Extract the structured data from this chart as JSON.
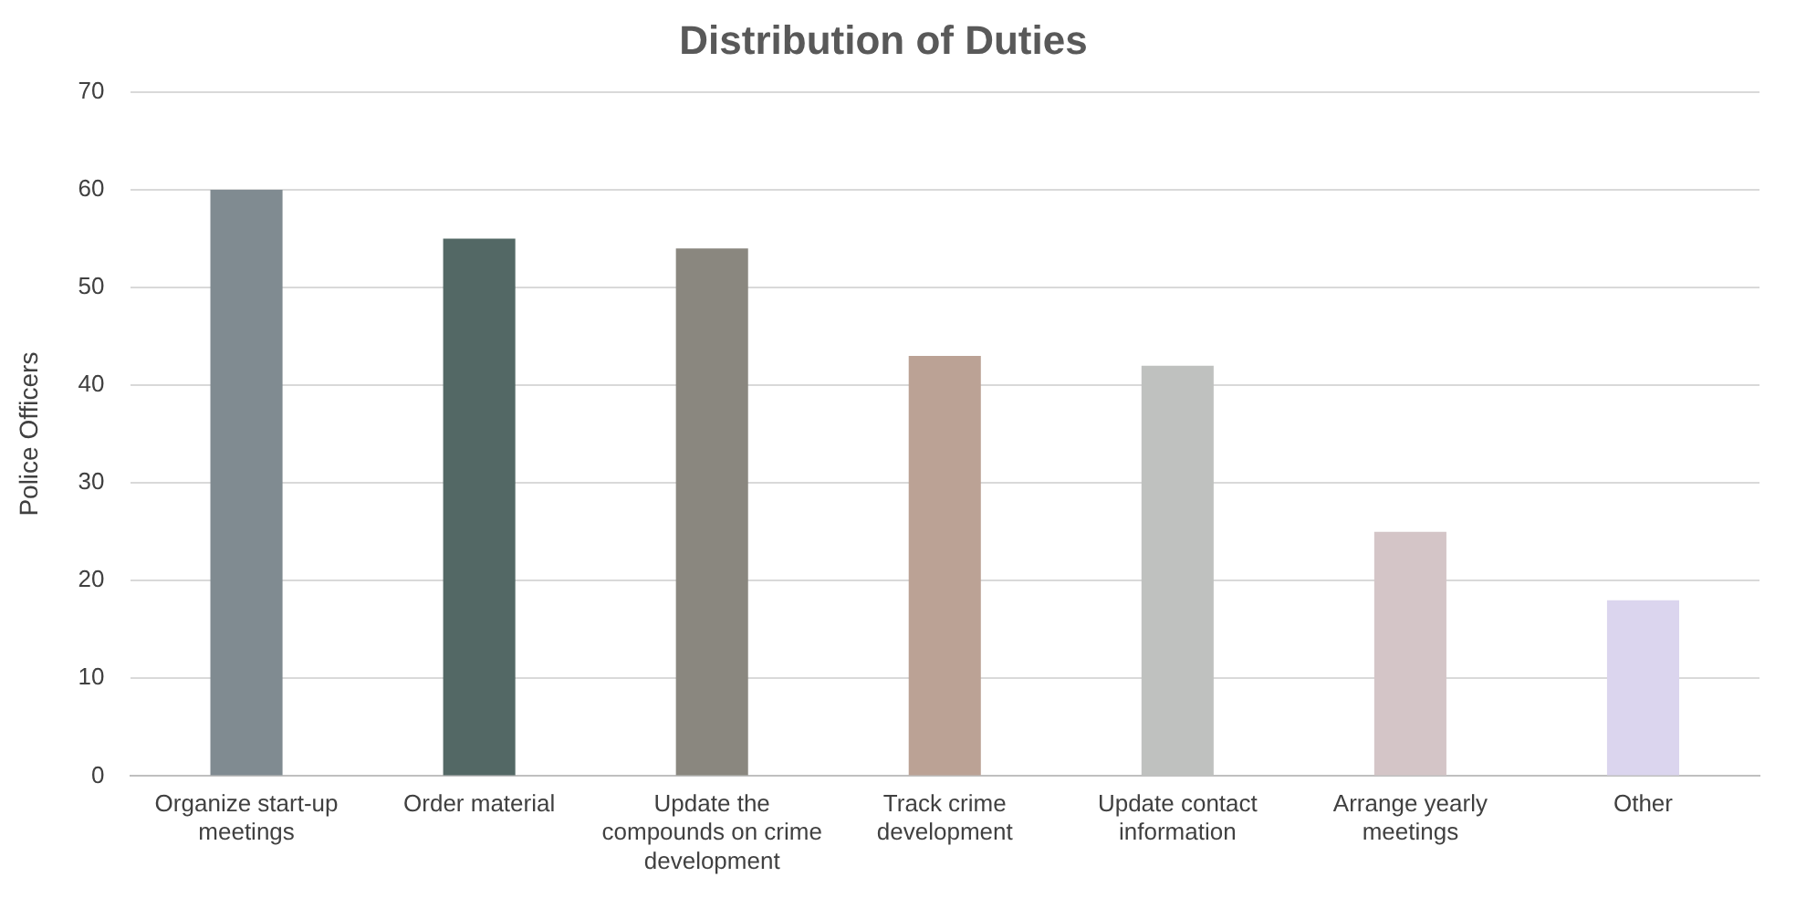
{
  "chart_data": {
    "type": "bar",
    "title": "Distribution of Duties",
    "ylabel": "Police Officers",
    "categories": [
      "Organize start-up meetings",
      "Order material",
      "Update the compounds on crime development",
      "Track crime development",
      "Update contact information",
      "Arrange yearly meetings",
      "Other"
    ],
    "values": [
      60,
      55,
      54,
      43,
      42,
      25,
      18
    ],
    "colors": [
      "#808b91",
      "#536865",
      "#8a877f",
      "#bba295",
      "#bfc1bf",
      "#d4c5c7",
      "#dbd5ee"
    ],
    "ylim": [
      0,
      70
    ],
    "yticks": [
      0,
      10,
      20,
      30,
      40,
      50,
      60,
      70
    ],
    "grid": "y",
    "legend": false
  }
}
